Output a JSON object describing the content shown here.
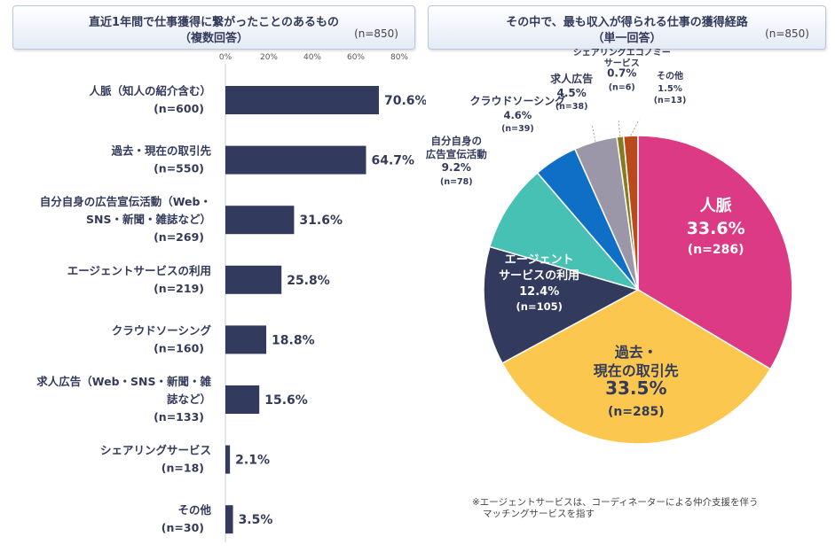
{
  "left_title": {
    "line1": "直近1年間で仕事獲得に繋がったことのあるもの",
    "line2": "（複数回答）",
    "n": "(n=850)"
  },
  "right_title": {
    "line1": "その中で、最も収入が得られる仕事の獲得経路",
    "line2": "（単一回答）",
    "n": "(n=850)"
  },
  "note": {
    "line1": "※エージェントサービスは、コーディネーターによる仲介支援を伴う",
    "line2": "マッチングサービスを指す"
  },
  "colors": {
    "bar": "#323a5e",
    "label": "#333a5a"
  },
  "chart_data": [
    {
      "type": "bar",
      "orientation": "horizontal",
      "xlim": [
        0,
        80
      ],
      "ticks": [
        "0%",
        "20%",
        "40%",
        "60%",
        "80%"
      ],
      "tick_values": [
        0,
        20,
        40,
        60,
        80
      ],
      "categories": [
        {
          "lines": [
            "人脈（知人の紹介含む）",
            "(n=600)"
          ],
          "value": 70.6,
          "label": "70.6%"
        },
        {
          "lines": [
            "過去・現在の取引先",
            "(n=550)"
          ],
          "value": 64.7,
          "label": "64.7%"
        },
        {
          "lines": [
            "自分自身の広告宣伝活動（Web・",
            "SNS・新聞・雑誌など）",
            "(n=269)"
          ],
          "value": 31.6,
          "label": "31.6%"
        },
        {
          "lines": [
            "エージェントサービスの利用",
            "(n=219)"
          ],
          "value": 25.8,
          "label": "25.8%"
        },
        {
          "lines": [
            "クラウドソーシング",
            "(n=160)"
          ],
          "value": 18.8,
          "label": "18.8%"
        },
        {
          "lines": [
            "求人広告（Web・SNS・新聞・雑",
            "誌など）",
            "(n=133)"
          ],
          "value": 15.6,
          "label": "15.6%"
        },
        {
          "lines": [
            "シェアリングサービス",
            "(n=18)"
          ],
          "value": 2.1,
          "label": "2.1%"
        },
        {
          "lines": [
            "その他",
            "(n=30)"
          ],
          "value": 3.5,
          "label": "3.5%"
        }
      ]
    },
    {
      "type": "pie",
      "slices": [
        {
          "name": "人脈",
          "value": 33.6,
          "pct": "33.6%",
          "n": "(n=286)",
          "color": "#dc3a84"
        },
        {
          "name": "過去・現在の取引先",
          "value": 33.5,
          "pct": "33.5%",
          "n": "(n=285)",
          "color": "#fcc74e"
        },
        {
          "name": "エージェントサービスの利用",
          "value": 12.4,
          "pct": "12.4%",
          "n": "(n=105)",
          "color": "#323a5e"
        },
        {
          "name": "自分自身の広告宣伝活動",
          "value": 9.2,
          "pct": "9.2%",
          "n": "(n=78)",
          "color": "#47c1b3"
        },
        {
          "name": "クラウドソーシング",
          "value": 4.6,
          "pct": "4.6%",
          "n": "(n=39)",
          "color": "#0f6fc6"
        },
        {
          "name": "求人広告",
          "value": 4.5,
          "pct": "4.5%",
          "n": "(n=38)",
          "color": "#9c97a8"
        },
        {
          "name": "シェアリングエコノミーサービス",
          "value": 0.7,
          "pct": "0.7%",
          "n": "(n=6)",
          "color": "#8a7a1e"
        },
        {
          "name": "その他",
          "value": 1.5,
          "pct": "1.5%",
          "n": "(n=13)",
          "color": "#b84a1e"
        }
      ],
      "label_lines": [
        [
          "人脈"
        ],
        [
          "過去・",
          "現在の取引先"
        ],
        [
          "エージェント",
          "サービスの利用"
        ],
        [
          "自分自身の",
          "広告宣伝活動"
        ],
        [
          "クラウドソーシング"
        ],
        [
          "求人広告"
        ],
        [
          "シェアリングエコノミー",
          "サービス"
        ],
        [
          "その他"
        ]
      ]
    }
  ]
}
